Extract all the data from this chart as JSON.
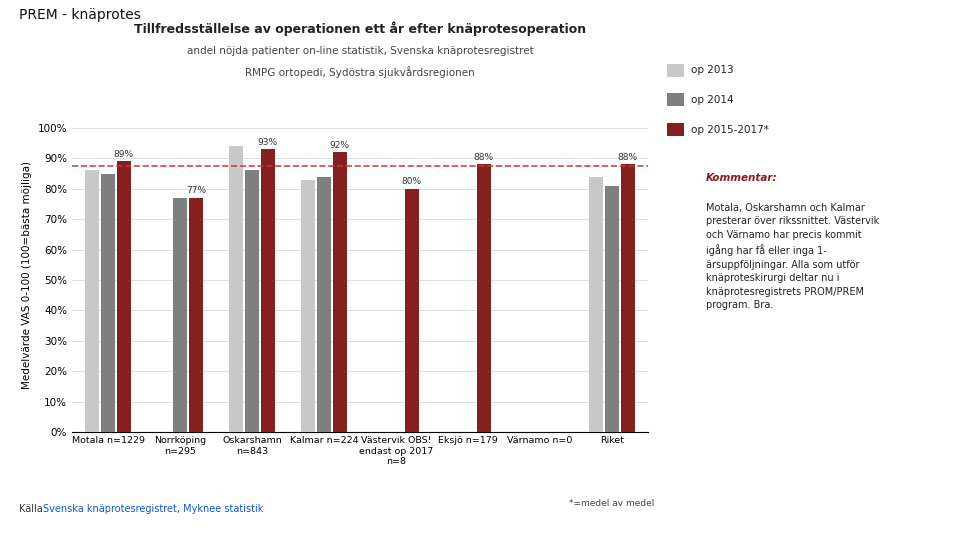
{
  "title": "Tillfredsställelse av operationen ett år efter knäprotesoperation",
  "subtitle1": "andel nöjda patienter on-line statistik, Svenska knäprotesregistret",
  "subtitle2": "RMPG ortopedi, Sydöstra sjukvårdsregionen",
  "suptitle": "PREM - knäprotes",
  "ylabel": "Medelvärde VAS 0-100 (100=bästa möjliga)",
  "reference_line": 87.5,
  "categories": [
    "Motala n=1229",
    "Norrköping\nn=295",
    "Oskarshamn\nn=843",
    "Kalmar n=224",
    "Västervik OBS!\nendast op 2017\nn=8",
    "Eksjö n=179",
    "Värnamo n=0",
    "Riket"
  ],
  "footnote": "*=medel av medel",
  "series": [
    {
      "label": "op 2013",
      "color": "#c8c8c8",
      "values": [
        86,
        null,
        94,
        83,
        null,
        null,
        null,
        84
      ]
    },
    {
      "label": "op 2014",
      "color": "#7f7f7f",
      "values": [
        85,
        77,
        86,
        84,
        null,
        null,
        null,
        81
      ]
    },
    {
      "label": "op 2015-2017*",
      "color": "#862020",
      "values": [
        89,
        77,
        93,
        92,
        80,
        88,
        null,
        88
      ]
    }
  ],
  "label_vals": [
    89,
    77,
    93,
    92,
    80,
    88,
    null,
    88
  ],
  "comment_title": "Kommentar:",
  "comment_text": "Motala, Oskarshamn och Kalmar\npresterar över rikssnittet. Västervik\noch Värnamo har precis kommit\nigång har få eller inga 1-\närsuppföljningar. Alla som utför\nknäproteskirurgi deltar nu i\nknäprotesregistrets PROM/PREM\nprogram. Bra.",
  "source_text": "Källa: ",
  "source_link": "Svenska knäprotesregistret, Myknee statistik",
  "background_color": "#ffffff"
}
